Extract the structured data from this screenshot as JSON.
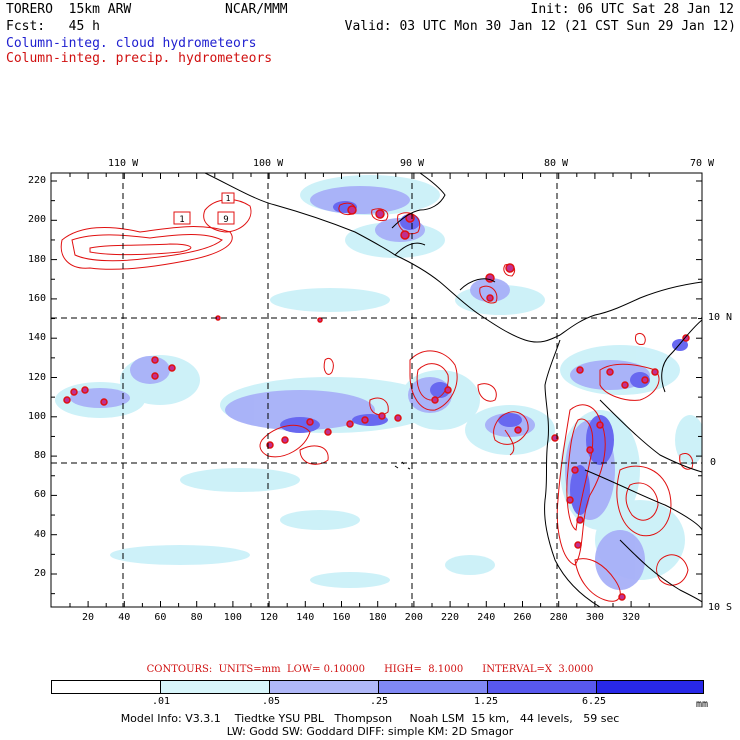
{
  "header": {
    "model": "TORERO  15km ARW",
    "org": "NCAR/MMM",
    "init": "Init: 06 UTC Sat 28 Jan 12",
    "fcst": "Fcst:   45 h",
    "valid": "Valid: 03 UTC Mon 30 Jan 12 (21 CST Sun 29 Jan 12)",
    "legend_cloud": "Column-integ. cloud hydrometeors",
    "legend_precip": "Column-integ. precip. hydrometeors"
  },
  "map": {
    "lon_labels": [
      "110 W",
      "100 W",
      "90 W",
      "80 W",
      "70 W"
    ],
    "lat_labels": [
      "10 N",
      "0",
      "10 S"
    ],
    "x_ticks": [
      "20",
      "40",
      "60",
      "80",
      "100",
      "120",
      "140",
      "160",
      "180",
      "200",
      "220",
      "240",
      "260",
      "280",
      "300",
      "320"
    ],
    "y_ticks": [
      "220",
      "200",
      "180",
      "160",
      "140",
      "120",
      "100",
      "80",
      "60",
      "40",
      "20"
    ],
    "box_labels": [
      "1",
      "9",
      "1"
    ],
    "cloud_color_light": "#c8f0f8",
    "cloud_color_mid": "#a8b0f8",
    "cloud_color_dark": "#6060f0",
    "precip_color": "#e01010",
    "coast_color": "#000000"
  },
  "contours_text": "CONTOURS:  UNITS=mm  LOW= 0.10000      HIGH=  8.1000      INTERVAL=X  3.0000",
  "colorbar": {
    "labels": [
      ".01",
      ".05",
      ".25",
      "1.25",
      "6.25"
    ],
    "unit": "mm",
    "colors": [
      "#ffffff",
      "#d8f6fb",
      "#b0b8f8",
      "#8088f4",
      "#5858ee",
      "#2828e8"
    ]
  },
  "footer": {
    "line1": "Model Info: V3.3.1    Tiedtke YSU PBL   Thompson     Noah LSM  15 km,   44 levels,   59 sec",
    "line2": "LW: Godd SW: Goddard DIFF: simple KM: 2D Smagor"
  }
}
